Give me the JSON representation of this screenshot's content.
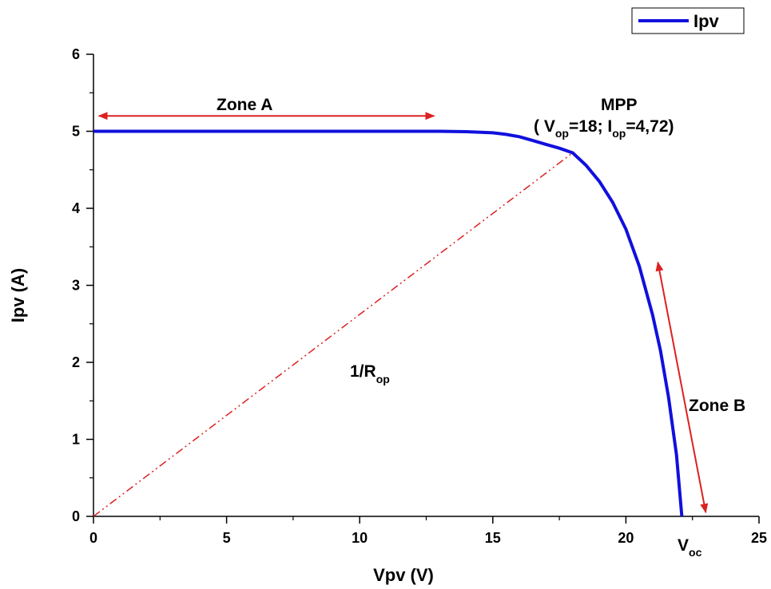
{
  "chart_data": {
    "type": "line",
    "title": "",
    "xlabel": "Vpv (V)",
    "ylabel": "Ipv (A)",
    "xlim": [
      0,
      25
    ],
    "ylim": [
      0,
      6
    ],
    "x_ticks": [
      "0",
      "5",
      "10",
      "15",
      "20",
      "25"
    ],
    "y_ticks": [
      "0",
      "1",
      "2",
      "3",
      "4",
      "5",
      "6"
    ],
    "grid": false,
    "legend_position": "top-right",
    "series": [
      {
        "name": "Ipv",
        "color": "#1010dd",
        "x": [
          0,
          2,
          4,
          6,
          8,
          10,
          12,
          13,
          14,
          15,
          15.5,
          16,
          16.5,
          17,
          17.5,
          18,
          18.5,
          19,
          19.5,
          20,
          20.5,
          21,
          21.3,
          21.6,
          21.9,
          22.1
        ],
        "y": [
          5.0,
          5.0,
          5.0,
          5.0,
          5.0,
          5.0,
          5.0,
          5.0,
          4.995,
          4.98,
          4.96,
          4.93,
          4.88,
          4.83,
          4.78,
          4.72,
          4.56,
          4.35,
          4.08,
          3.73,
          3.25,
          2.62,
          2.15,
          1.55,
          0.8,
          0.0
        ]
      }
    ],
    "reference_line": {
      "label_main": "1/R",
      "label_sub": "op",
      "color": "#dd2020",
      "style": "dash-dot",
      "from": [
        0,
        0
      ],
      "to": [
        18,
        4.72
      ]
    },
    "annotations": {
      "zone_a": {
        "label": "Zone A",
        "arrow_from": [
          0.2,
          5.2
        ],
        "arrow_to": [
          12.8,
          5.2
        ],
        "color": "#dd2020"
      },
      "zone_b": {
        "label": "Zone B",
        "arrow_from": [
          21.2,
          3.3
        ],
        "arrow_to": [
          23.0,
          0.05
        ],
        "color": "#dd2020"
      },
      "mpp": {
        "title": "MPP",
        "detail": [
          {
            "text": "( V",
            "sub": false
          },
          {
            "text": "op",
            "sub": true
          },
          {
            "text": "=18; I",
            "sub": false
          },
          {
            "text": "op",
            "sub": true
          },
          {
            "text": "=4,72)",
            "sub": false
          }
        ]
      },
      "voc": {
        "main": "V",
        "sub": "oc"
      }
    }
  }
}
